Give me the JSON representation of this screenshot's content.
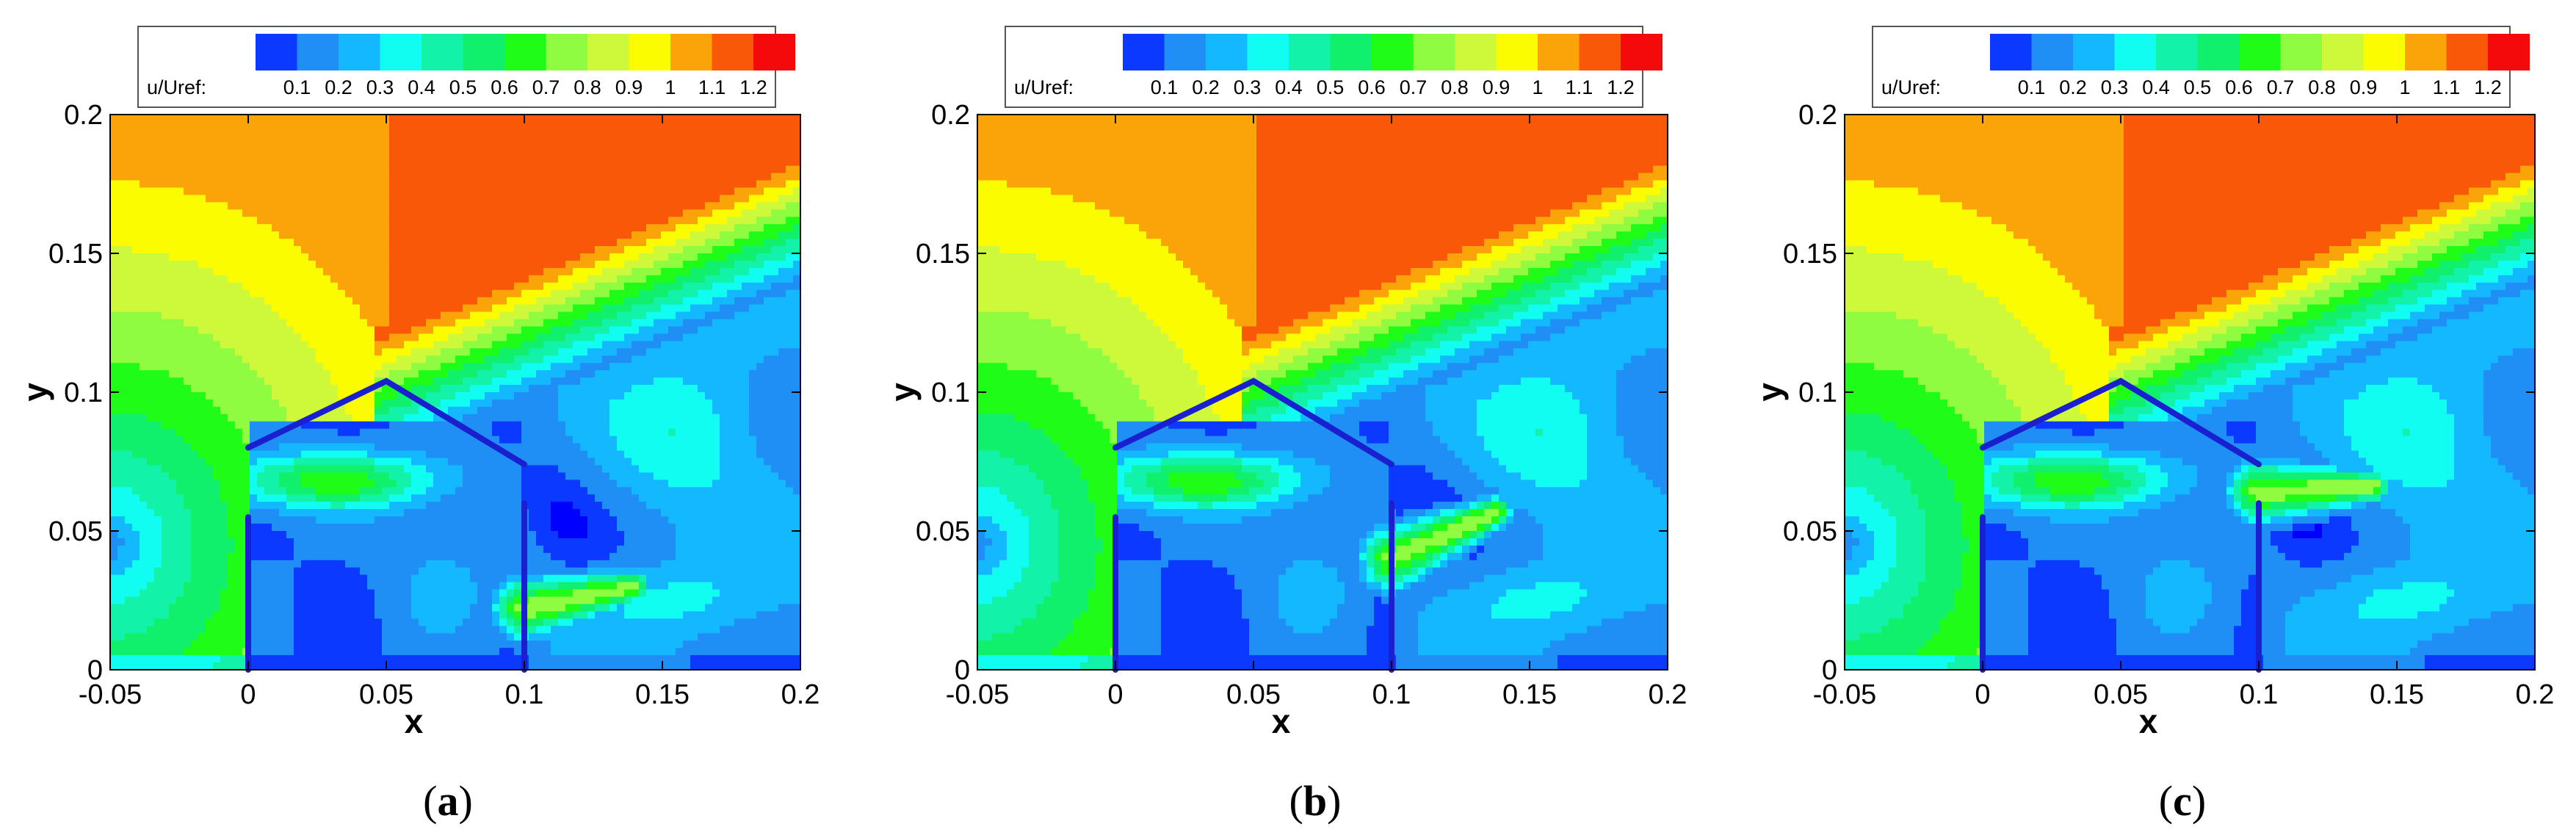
{
  "colors": {
    "levels": [
      "#0000ff",
      "#0b39ff",
      "#1f8ff5",
      "#14b8ff",
      "#12fdf2",
      "#12f3a9",
      "#11f06d",
      "#1ffc18",
      "#8ffb41",
      "#cef93a",
      "#fbfc00",
      "#fba409",
      "#fa5809",
      "#f50a0b"
    ],
    "walls": "#1a1fcf"
  },
  "chart_data": [
    {
      "type": "contour",
      "panel_label": "a",
      "colorbar": {
        "title": "u/Uref:",
        "ticks": [
          "0.1",
          "0.2",
          "0.3",
          "0.4",
          "0.5",
          "0.6",
          "0.7",
          "0.8",
          "0.9",
          "1",
          "1.1",
          "1.2"
        ],
        "levels": [
          0.05,
          0.1,
          0.2,
          0.3,
          0.4,
          0.5,
          0.6,
          0.7,
          0.8,
          0.9,
          1.0,
          1.1,
          1.2
        ]
      },
      "xlabel": "x",
      "ylabel": "y",
      "xlim": [
        -0.05,
        0.2
      ],
      "ylim": [
        0,
        0.2
      ],
      "xticks": [
        "-0.05",
        "0",
        "0.05",
        "0.1",
        "0.15",
        "0.2"
      ],
      "yticks": [
        "0",
        "0.05",
        "0.1",
        "0.15",
        "0.2"
      ],
      "jet": {
        "start": [
          0.1,
          0.022
        ],
        "end": [
          0.14,
          0.03
        ],
        "peak_u": 0.75
      }
    },
    {
      "type": "contour",
      "panel_label": "b",
      "colorbar": {
        "title": "u/Uref:",
        "ticks": [
          "0.1",
          "0.2",
          "0.3",
          "0.4",
          "0.5",
          "0.6",
          "0.7",
          "0.8",
          "0.9",
          "1",
          "1.1",
          "1.2"
        ],
        "levels": [
          0.05,
          0.1,
          0.2,
          0.3,
          0.4,
          0.5,
          0.6,
          0.7,
          0.8,
          0.9,
          1.0,
          1.1,
          1.2
        ]
      },
      "xlabel": "x",
      "ylabel": "y",
      "xlim": [
        -0.05,
        0.2
      ],
      "ylim": [
        0,
        0.2
      ],
      "xticks": [
        "-0.05",
        "0",
        "0.05",
        "0.1",
        "0.15",
        "0.2"
      ],
      "yticks": [
        "0",
        "0.05",
        "0.1",
        "0.15",
        "0.2"
      ],
      "jet": {
        "start": [
          0.1,
          0.04
        ],
        "end": [
          0.138,
          0.057
        ],
        "peak_u": 0.75
      }
    },
    {
      "type": "contour",
      "panel_label": "c",
      "colorbar": {
        "title": "u/Uref:",
        "ticks": [
          "0.1",
          "0.2",
          "0.3",
          "0.4",
          "0.5",
          "0.6",
          "0.7",
          "0.8",
          "0.9",
          "1",
          "1.1",
          "1.2"
        ],
        "levels": [
          0.05,
          0.1,
          0.2,
          0.3,
          0.4,
          0.5,
          0.6,
          0.7,
          0.8,
          0.9,
          1.0,
          1.1,
          1.2
        ]
      },
      "xlabel": "x",
      "ylabel": "y",
      "xlim": [
        -0.05,
        0.2
      ],
      "ylim": [
        0,
        0.2
      ],
      "xticks": [
        "-0.05",
        "0",
        "0.05",
        "0.1",
        "0.15",
        "0.2"
      ],
      "yticks": [
        "0",
        "0.05",
        "0.1",
        "0.15",
        "0.2"
      ],
      "jet": {
        "start": [
          0.1,
          0.064
        ],
        "end": [
          0.142,
          0.066
        ],
        "peak_u": 0.75
      }
    }
  ]
}
